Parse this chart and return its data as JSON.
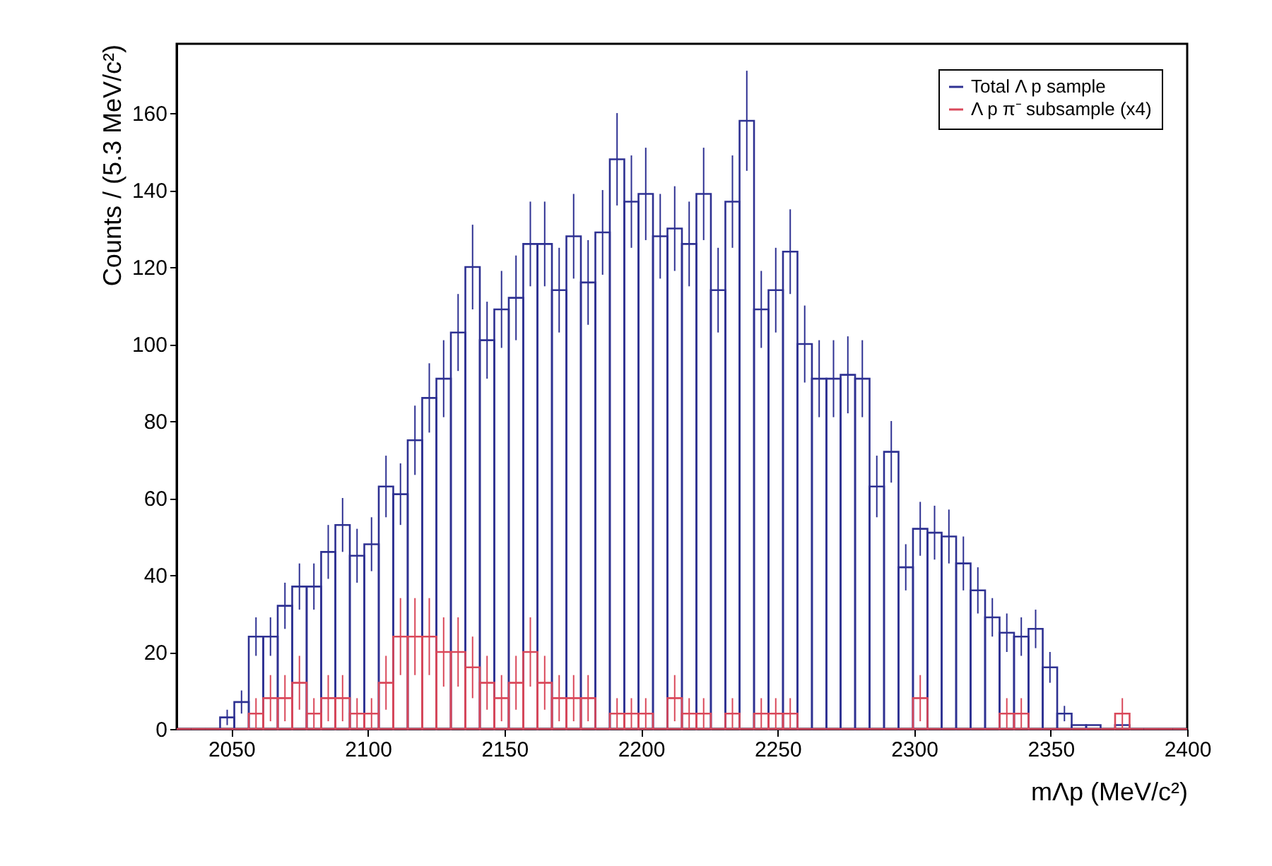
{
  "chart_data": {
    "type": "histogram",
    "xlabel": "mΛp (MeV/c²)",
    "ylabel": "Counts / (5.3 MeV/c²)",
    "bins": [
      2030,
      2035.3,
      2040.6,
      2045.9,
      2051.1,
      2056.4,
      2061.7,
      2067.0,
      2072.3,
      2077.6,
      2082.9,
      2088.1,
      2093.4,
      2098.7,
      2104.0,
      2109.3,
      2114.6,
      2119.9,
      2125.1,
      2130.4,
      2135.7,
      2141.0,
      2146.3,
      2151.6,
      2156.9,
      2162.1,
      2167.4,
      2172.7,
      2178.0,
      2183.3,
      2188.6,
      2193.9,
      2199.1,
      2204.4,
      2209.7,
      2215.0,
      2220.3,
      2225.6,
      2230.9,
      2236.1,
      2241.4,
      2246.7,
      2252.0,
      2257.3,
      2262.6,
      2267.9,
      2273.1,
      2278.4,
      2283.7,
      2289.0,
      2294.3,
      2299.6,
      2304.9,
      2310.1,
      2315.4,
      2320.7,
      2326.0,
      2331.3,
      2336.6,
      2341.9,
      2347.1,
      2352.4,
      2357.7,
      2363.0,
      2368.3,
      2373.6,
      2378.9,
      2384.1,
      2389.4,
      2394.7,
      2400
    ],
    "series": [
      {
        "name": "Total Λ p sample",
        "color": "#2e3192",
        "values": [
          0,
          0,
          0,
          3,
          7,
          24,
          24,
          32,
          37,
          37,
          46,
          53,
          45,
          48,
          63,
          61,
          75,
          86,
          91,
          103,
          120,
          101,
          109,
          112,
          126,
          126,
          114,
          128,
          116,
          129,
          148,
          137,
          139,
          128,
          130,
          126,
          139,
          114,
          137,
          158,
          109,
          114,
          124,
          100,
          91,
          91,
          92,
          91,
          63,
          72,
          42,
          52,
          51,
          50,
          43,
          36,
          29,
          25,
          24,
          26,
          16,
          4,
          1,
          1,
          0,
          1,
          0,
          0,
          0,
          0
        ],
        "errors": [
          null,
          null,
          null,
          2,
          3,
          5,
          5,
          6,
          6,
          6,
          7,
          7,
          7,
          7,
          8,
          8,
          9,
          9,
          10,
          10,
          11,
          10,
          10,
          11,
          11,
          11,
          11,
          11,
          11,
          11,
          12,
          12,
          12,
          11,
          11,
          11,
          12,
          11,
          12,
          13,
          10,
          11,
          11,
          10,
          10,
          10,
          10,
          10,
          8,
          8,
          6,
          7,
          7,
          7,
          7,
          6,
          5,
          5,
          5,
          5,
          4,
          2,
          null,
          null,
          null,
          null,
          null,
          null,
          null,
          null
        ]
      },
      {
        "name": "Λ p π⁻ subsample (x4)",
        "color": "#d9485a",
        "values": [
          0,
          0,
          0,
          0,
          0,
          4,
          8,
          8,
          12,
          4,
          8,
          8,
          4,
          4,
          12,
          24,
          24,
          24,
          20,
          20,
          16,
          12,
          8,
          12,
          20,
          12,
          8,
          8,
          8,
          0,
          4,
          4,
          4,
          0,
          8,
          4,
          4,
          0,
          4,
          0,
          4,
          4,
          4,
          0,
          0,
          0,
          0,
          0,
          0,
          0,
          0,
          8,
          0,
          0,
          0,
          0,
          0,
          4,
          4,
          0,
          0,
          0,
          0,
          0,
          0,
          4,
          0,
          0,
          0,
          0
        ],
        "errors": [
          null,
          null,
          null,
          null,
          null,
          4,
          6,
          6,
          7,
          4,
          6,
          6,
          4,
          4,
          7,
          10,
          10,
          10,
          9,
          9,
          8,
          7,
          6,
          7,
          9,
          7,
          6,
          6,
          6,
          null,
          4,
          4,
          4,
          null,
          6,
          4,
          4,
          null,
          4,
          null,
          4,
          4,
          4,
          null,
          null,
          null,
          null,
          null,
          null,
          null,
          null,
          6,
          null,
          null,
          null,
          null,
          null,
          4,
          4,
          null,
          null,
          null,
          null,
          null,
          null,
          4,
          null,
          null,
          null,
          null
        ]
      }
    ],
    "xlim": [
      2030,
      2400
    ],
    "xticks": [
      2050,
      2100,
      2150,
      2200,
      2250,
      2300,
      2350,
      2400
    ],
    "ylim": [
      0,
      178
    ],
    "yticks": [
      0,
      20,
      40,
      60,
      80,
      100,
      120,
      140,
      160
    ],
    "legend": "top right"
  }
}
